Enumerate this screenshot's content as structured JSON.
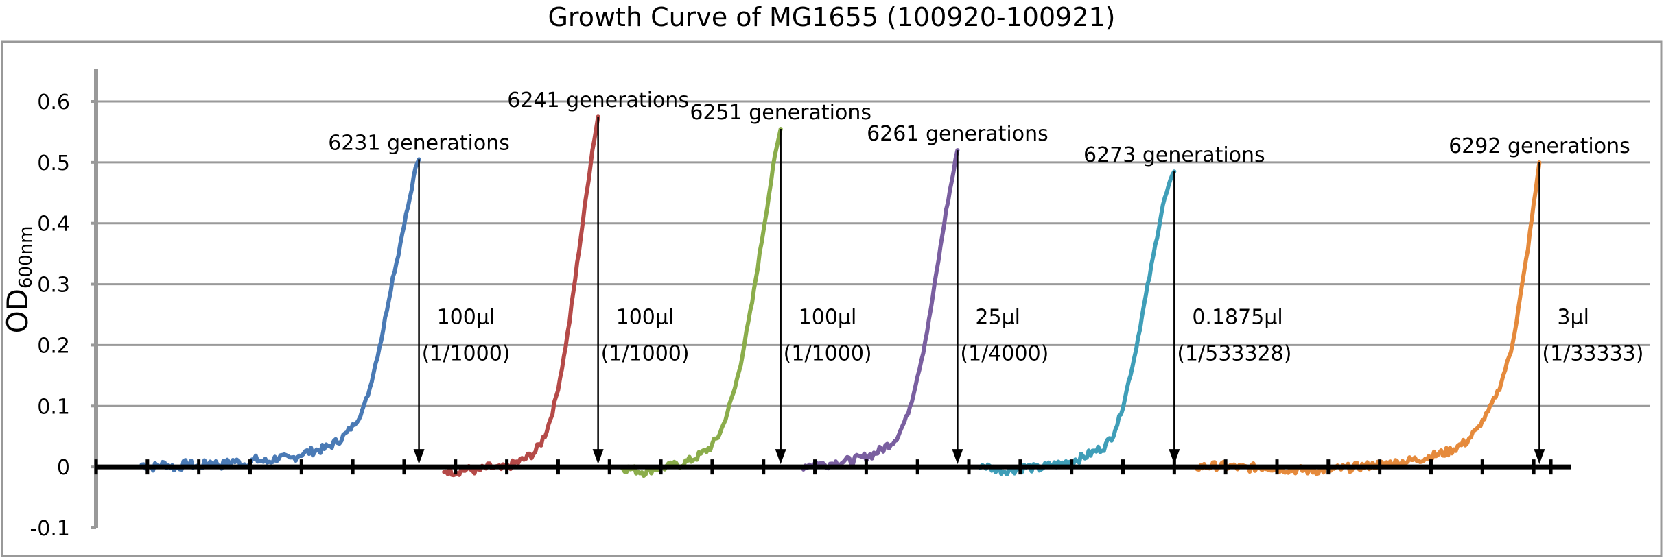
{
  "chart_data": {
    "type": "line",
    "title": "Growth Curve of MG1655 (100920-100921)",
    "ylabel_main": "OD",
    "ylabel_sub": "600nm",
    "xlabel": "",
    "ylim": [
      -0.1,
      0.6
    ],
    "yticks": [
      -0.1,
      0,
      0.1,
      0.2,
      0.3,
      0.4,
      0.5,
      0.6
    ],
    "ytick_labels": [
      "-0.1",
      "0",
      "0.1",
      "0.2",
      "0.3",
      "0.4",
      "0.5",
      "0.6"
    ],
    "grid": true,
    "legend": "none",
    "series": [
      {
        "color": "#4a7ab5",
        "x": [
          0,
          10,
          20,
          30,
          40,
          50,
          60,
          70,
          80,
          90,
          100,
          110,
          120,
          130,
          140,
          150,
          160,
          170,
          180,
          190,
          195,
          200,
          205,
          210,
          215,
          220,
          225,
          230,
          235,
          240,
          243
        ],
        "y": [
          0.004,
          0.0,
          0.005,
          -0.002,
          0.006,
          0.0,
          0.008,
          0.003,
          0.01,
          0.005,
          0.012,
          0.008,
          0.016,
          0.012,
          0.022,
          0.026,
          0.03,
          0.04,
          0.055,
          0.08,
          0.1,
          0.13,
          0.17,
          0.21,
          0.26,
          0.31,
          0.35,
          0.4,
          0.44,
          0.49,
          0.505
        ]
      },
      {
        "color": "#b54a48",
        "x": [
          265,
          275,
          285,
          295,
          305,
          315,
          325,
          335,
          345,
          350,
          355,
          360,
          365,
          370,
          375,
          380,
          385,
          390,
          395,
          400
        ],
        "y": [
          -0.005,
          -0.008,
          -0.004,
          -0.006,
          0.0,
          -0.004,
          0.004,
          0.012,
          0.025,
          0.04,
          0.06,
          0.09,
          0.13,
          0.18,
          0.24,
          0.31,
          0.38,
          0.45,
          0.52,
          0.575
        ]
      },
      {
        "color": "#8bad4b",
        "x": [
          420,
          430,
          440,
          450,
          460,
          470,
          480,
          490,
          500,
          505,
          510,
          515,
          520,
          525,
          530,
          535,
          540,
          545,
          550,
          555,
          560
        ],
        "y": [
          0.0,
          -0.004,
          -0.008,
          -0.002,
          0.0,
          0.003,
          0.01,
          0.02,
          0.035,
          0.05,
          0.07,
          0.1,
          0.13,
          0.17,
          0.22,
          0.27,
          0.33,
          0.39,
          0.45,
          0.51,
          0.555
        ]
      },
      {
        "color": "#7a5fa0",
        "x": [
          580,
          590,
          600,
          610,
          620,
          630,
          640,
          650,
          660,
          665,
          670,
          675,
          680,
          685,
          690,
          695,
          700,
          705,
          710,
          715
        ],
        "y": [
          0.002,
          0.006,
          0.004,
          0.008,
          0.01,
          0.014,
          0.02,
          0.03,
          0.045,
          0.06,
          0.08,
          0.11,
          0.15,
          0.19,
          0.24,
          0.3,
          0.36,
          0.42,
          0.47,
          0.52
        ]
      },
      {
        "color": "#3f9eb8",
        "x": [
          735,
          745,
          755,
          765,
          775,
          785,
          795,
          805,
          815,
          825,
          835,
          845,
          850,
          855,
          860,
          865,
          870,
          875,
          880,
          885,
          890,
          895,
          900,
          905
        ],
        "y": [
          0.004,
          -0.002,
          -0.006,
          -0.004,
          0.0,
          -0.003,
          0.002,
          0.005,
          0.01,
          0.016,
          0.025,
          0.035,
          0.05,
          0.07,
          0.1,
          0.14,
          0.18,
          0.23,
          0.28,
          0.33,
          0.38,
          0.43,
          0.46,
          0.485
        ]
      },
      {
        "color": "#e58a3c",
        "x": [
          925,
          945,
          965,
          985,
          1005,
          1025,
          1045,
          1065,
          1085,
          1105,
          1125,
          1145,
          1160,
          1170,
          1180,
          1190,
          1200,
          1205,
          1210,
          1215,
          1220,
          1225
        ],
        "y": [
          0.0,
          0.002,
          -0.002,
          0.0,
          -0.004,
          -0.006,
          -0.004,
          0.0,
          0.004,
          0.008,
          0.015,
          0.025,
          0.04,
          0.06,
          0.09,
          0.13,
          0.19,
          0.24,
          0.3,
          0.36,
          0.43,
          0.5
        ]
      }
    ],
    "xlim": [
      -40,
      1250
    ],
    "xticks": [
      -40,
      5,
      50,
      95,
      140,
      185,
      230,
      275,
      320,
      365,
      410,
      455,
      500,
      545,
      590,
      635,
      680,
      725,
      770,
      815,
      860,
      905,
      950,
      995,
      1040,
      1085,
      1130,
      1175,
      1220,
      1235
    ],
    "peaks": [
      {
        "x": 243,
        "y": 0.505,
        "label": "6231 generations",
        "vol": "100μl",
        "dil": "(1/1000)"
      },
      {
        "x": 400,
        "y": 0.575,
        "label": "6241 generations",
        "vol": "100μl",
        "dil": "(1/1000)"
      },
      {
        "x": 560,
        "y": 0.555,
        "label": "6251 generations",
        "vol": "100μl",
        "dil": "(1/1000)"
      },
      {
        "x": 715,
        "y": 0.52,
        "label": "6261 generations",
        "vol": "25μl",
        "dil": "(1/4000)"
      },
      {
        "x": 905,
        "y": 0.485,
        "label": "6273 generations",
        "vol": "0.1875μl",
        "dil": "(1/533328)"
      },
      {
        "x": 1225,
        "y": 0.5,
        "label": "6292 generations",
        "vol": "3μl",
        "dil": "(1/33333)"
      }
    ],
    "seed": 7
  }
}
